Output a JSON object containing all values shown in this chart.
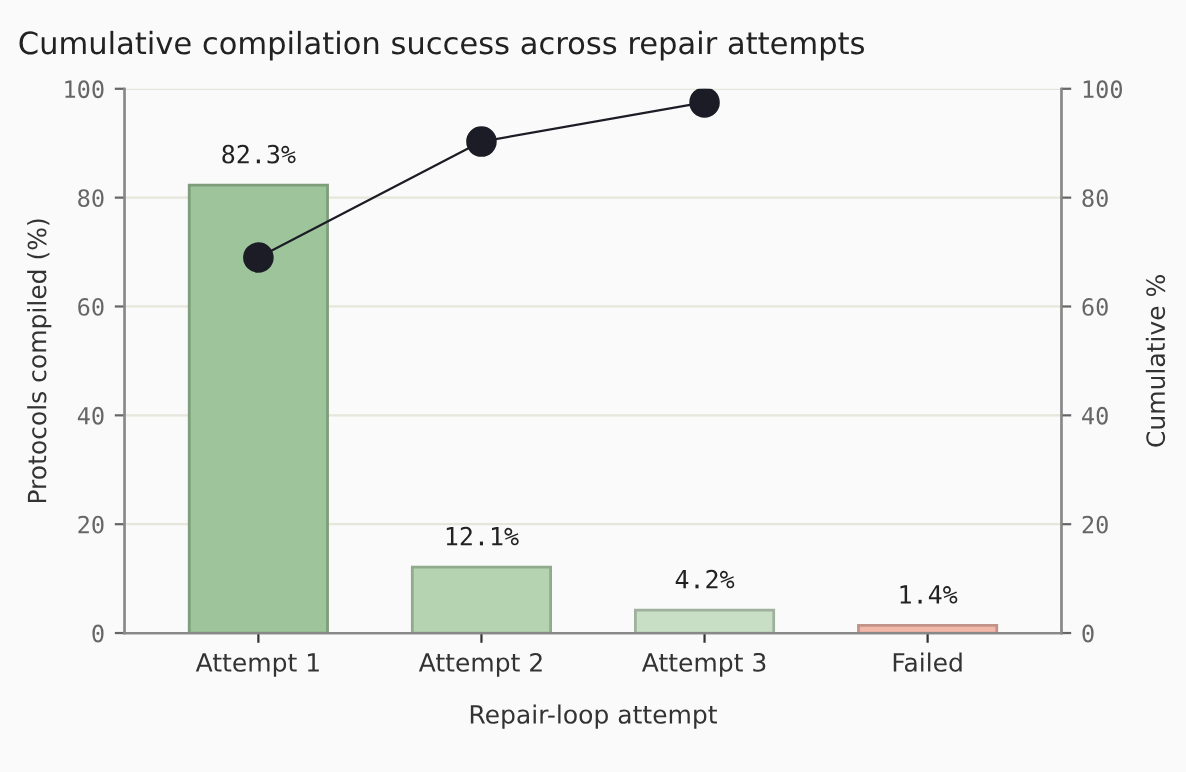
{
  "chart_data": {
    "type": "bar",
    "title": "Cumulative compilation success across repair attempts",
    "xlabel": "Repair-loop attempt",
    "ylabel": "Protocols compiled (%)",
    "y2label": "Cumulative %",
    "categories": [
      "Attempt 1",
      "Attempt 2",
      "Attempt 3",
      "Failed"
    ],
    "series": [
      {
        "values": [
          82.3,
          12.1,
          4.2,
          1.4
        ],
        "colors": [
          "#9dc49a",
          "#b5d3b0",
          "#c8dfc5",
          "#f2b8aa"
        ],
        "value_labels": [
          "82.3%",
          "12.1%",
          "4.2%",
          "1.4%"
        ]
      },
      {
        "type": "line",
        "axis": "y2",
        "color": "#1c1c26",
        "values": [
          69.0,
          90.3,
          97.5,
          null
        ],
        "marker": "circle"
      }
    ],
    "ylim": [
      0,
      100
    ],
    "yticks": [
      0,
      20,
      40,
      60,
      80,
      100
    ],
    "y2lim": [
      0,
      100
    ],
    "y2ticks": [
      0,
      20,
      40,
      60,
      80,
      100
    ],
    "grid": "y"
  }
}
